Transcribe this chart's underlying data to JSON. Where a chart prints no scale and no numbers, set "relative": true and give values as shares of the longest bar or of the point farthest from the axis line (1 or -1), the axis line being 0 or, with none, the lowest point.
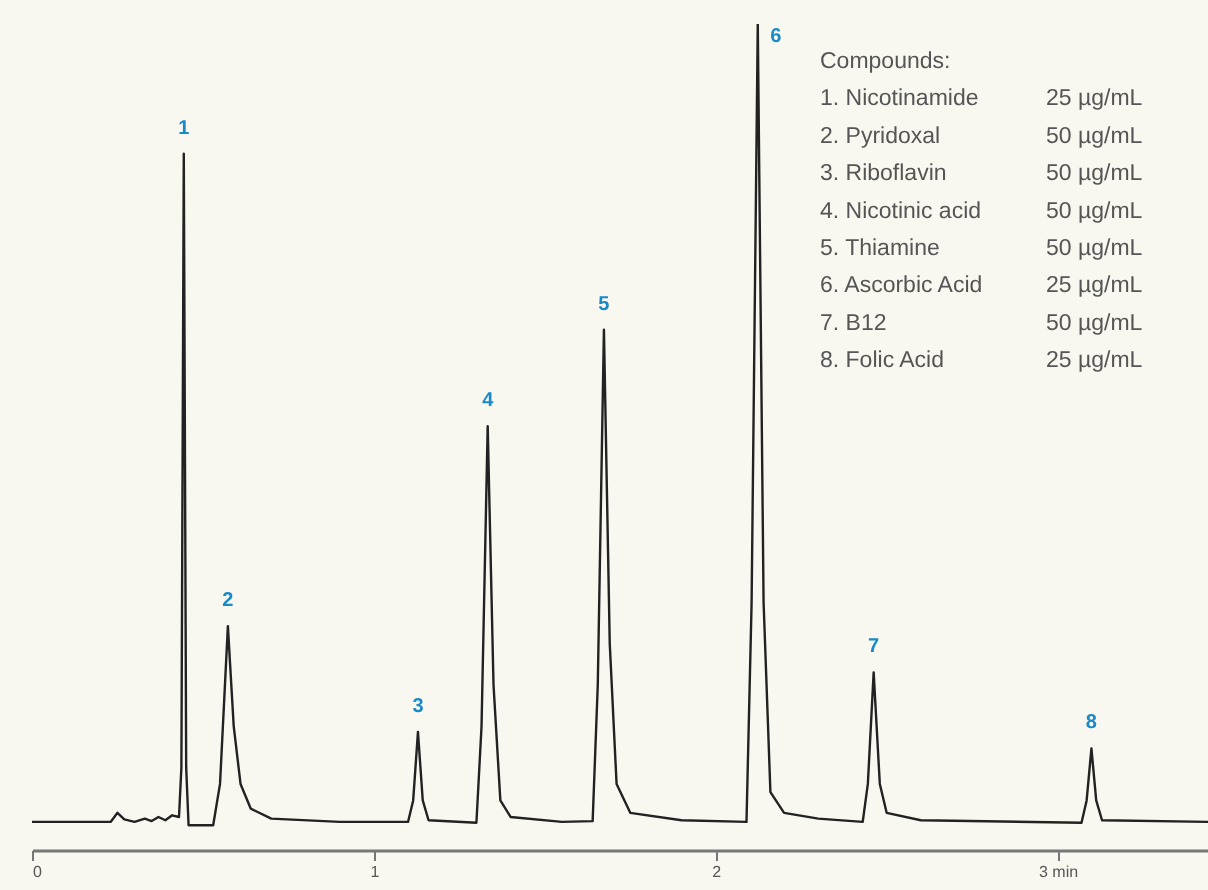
{
  "chart_data": {
    "type": "line",
    "relative": true,
    "x": [
      0,
      0.23,
      0.25,
      0.27,
      0.3,
      0.33,
      0.35,
      0.37,
      0.39,
      0.41,
      0.43,
      0.437,
      0.444,
      0.451,
      0.458,
      0.53,
      0.55,
      0.573,
      0.59,
      0.61,
      0.64,
      0.7,
      0.9,
      1.1,
      1.115,
      1.129,
      1.143,
      1.16,
      1.3,
      1.315,
      1.333,
      1.35,
      1.37,
      1.4,
      1.55,
      1.64,
      1.655,
      1.673,
      1.69,
      1.71,
      1.75,
      1.9,
      2.09,
      2.105,
      2.123,
      2.14,
      2.16,
      2.2,
      2.3,
      2.43,
      2.445,
      2.462,
      2.48,
      2.5,
      2.6,
      3.07,
      3.085,
      3.099,
      3.113,
      3.13,
      3.44
    ],
    "series": [
      {
        "color": "#222222",
        "values": [
          0.034,
          0.034,
          0.045,
          0.037,
          0.034,
          0.038,
          0.035,
          0.04,
          0.036,
          0.042,
          0.04,
          0.1,
          0.843,
          0.1,
          0.03,
          0.03,
          0.08,
          0.271,
          0.15,
          0.08,
          0.05,
          0.038,
          0.034,
          0.034,
          0.06,
          0.143,
          0.06,
          0.036,
          0.033,
          0.15,
          0.513,
          0.2,
          0.06,
          0.04,
          0.034,
          0.035,
          0.2,
          0.63,
          0.25,
          0.08,
          0.045,
          0.036,
          0.034,
          0.3,
          1,
          0.3,
          0.07,
          0.045,
          0.038,
          0.034,
          0.08,
          0.215,
          0.08,
          0.045,
          0.036,
          0.033,
          0.06,
          0.123,
          0.06,
          0.036,
          0.034
        ]
      }
    ],
    "xlim": [
      0,
      3.44
    ],
    "xticks": [
      0,
      1,
      2,
      {
        "value": 3,
        "label": "3 min"
      }
    ],
    "annotations": [
      {
        "text": "1",
        "x": 0.444,
        "y": 0.843
      },
      {
        "text": "2",
        "x": 0.573,
        "y": 0.271
      },
      {
        "text": "3",
        "x": 1.129,
        "y": 0.143
      },
      {
        "text": "4",
        "x": 1.333,
        "y": 0.513
      },
      {
        "text": "5",
        "x": 1.673,
        "y": 0.63
      },
      {
        "text": "6",
        "x": 2.123,
        "y": 1
      },
      {
        "text": "7",
        "x": 2.462,
        "y": 0.215
      },
      {
        "text": "8",
        "x": 3.099,
        "y": 0.123
      },
      "Compounds:",
      "1. Nicotinamide\t25 µg/mL",
      "2. Pyridoxal\t50 µg/mL",
      "3. Riboflavin\t50 µg/mL",
      "4. Nicotinic acid\t50 µg/mL",
      "5. Thiamine\t50 µg/mL",
      "6. Ascorbic Acid\t25 µg/mL",
      "7. B12\t50 µg/mL",
      "8. Folic Acid\t25 µg/mL"
    ]
  }
}
